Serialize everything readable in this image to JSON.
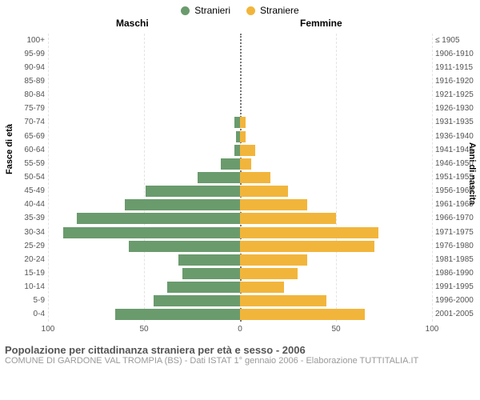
{
  "legend": {
    "male": {
      "label": "Stranieri",
      "color": "#6a9b6d"
    },
    "female": {
      "label": "Straniere",
      "color": "#f2b53b"
    }
  },
  "headers": {
    "left": "Maschi",
    "right": "Femmine"
  },
  "axis_titles": {
    "left": "Fasce di età",
    "right": "Anni di nascita"
  },
  "chart": {
    "type": "population-pyramid",
    "xmax": 100,
    "xtick_step": 50,
    "xticks_left": [
      100,
      50,
      0
    ],
    "xticks_right": [
      0,
      50,
      100
    ],
    "background_color": "#ffffff",
    "grid_color": "#e3e3e3",
    "male_color": "#6a9b6d",
    "female_color": "#f2b53b",
    "rows": [
      {
        "age": "100+",
        "birth": "≤ 1905",
        "m": 0,
        "f": 0
      },
      {
        "age": "95-99",
        "birth": "1906-1910",
        "m": 0,
        "f": 0
      },
      {
        "age": "90-94",
        "birth": "1911-1915",
        "m": 0,
        "f": 0
      },
      {
        "age": "85-89",
        "birth": "1916-1920",
        "m": 0,
        "f": 0
      },
      {
        "age": "80-84",
        "birth": "1921-1925",
        "m": 0,
        "f": 0
      },
      {
        "age": "75-79",
        "birth": "1926-1930",
        "m": 0,
        "f": 0
      },
      {
        "age": "70-74",
        "birth": "1931-1935",
        "m": 3,
        "f": 3
      },
      {
        "age": "65-69",
        "birth": "1936-1940",
        "m": 2,
        "f": 3
      },
      {
        "age": "60-64",
        "birth": "1941-1945",
        "m": 3,
        "f": 8
      },
      {
        "age": "55-59",
        "birth": "1946-1950",
        "m": 10,
        "f": 6
      },
      {
        "age": "50-54",
        "birth": "1951-1955",
        "m": 22,
        "f": 16
      },
      {
        "age": "45-49",
        "birth": "1956-1960",
        "m": 49,
        "f": 25
      },
      {
        "age": "40-44",
        "birth": "1961-1965",
        "m": 60,
        "f": 35
      },
      {
        "age": "35-39",
        "birth": "1966-1970",
        "m": 85,
        "f": 50
      },
      {
        "age": "30-34",
        "birth": "1971-1975",
        "m": 92,
        "f": 72
      },
      {
        "age": "25-29",
        "birth": "1976-1980",
        "m": 58,
        "f": 70
      },
      {
        "age": "20-24",
        "birth": "1981-1985",
        "m": 32,
        "f": 35
      },
      {
        "age": "15-19",
        "birth": "1986-1990",
        "m": 30,
        "f": 30
      },
      {
        "age": "10-14",
        "birth": "1991-1995",
        "m": 38,
        "f": 23
      },
      {
        "age": "5-9",
        "birth": "1996-2000",
        "m": 45,
        "f": 45
      },
      {
        "age": "0-4",
        "birth": "2001-2005",
        "m": 65,
        "f": 65
      }
    ]
  },
  "footer": {
    "title": "Popolazione per cittadinanza straniera per età e sesso - 2006",
    "subtitle": "COMUNE DI GARDONE VAL TROMPIA (BS) - Dati ISTAT 1° gennaio 2006 - Elaborazione TUTTITALIA.IT"
  }
}
